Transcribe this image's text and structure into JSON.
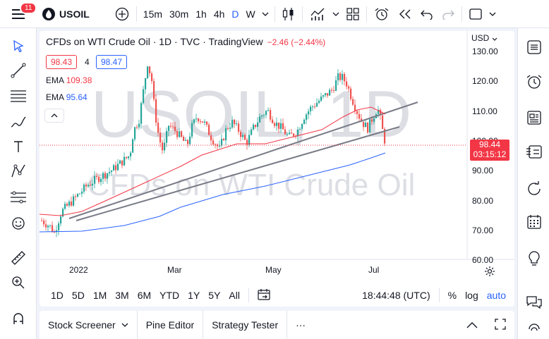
{
  "topbar": {
    "notif_count": "11",
    "symbol": "USOIL",
    "timeframes": [
      "15m",
      "30m",
      "1h",
      "4h",
      "D",
      "W"
    ],
    "active_timeframe": "D"
  },
  "chart": {
    "title": "CFDs on WTI Crude Oil · 1D · TVC · TradingView",
    "change": "−2.46 (−2.44%)",
    "bid": "98.43",
    "spread": "4",
    "ask": "98.47",
    "ema1_label": "EMA",
    "ema1_value": "109.38",
    "ema2_label": "EMA",
    "ema2_value": "95.64",
    "watermark_symbol": "USOIL, 1D",
    "watermark_name": "CFDs on WTI Crude Oil",
    "currency": "USD",
    "price_axis": [
      "130.00",
      "120.00",
      "110.00",
      "100.00",
      "90.00",
      "80.00",
      "70.00",
      "60.00"
    ],
    "time_axis": [
      "2022",
      "Mar",
      "May",
      "Jul"
    ],
    "last_price": "98.44",
    "countdown": "03:15:12",
    "colors": {
      "up": "#26a69a",
      "down": "#ef5350",
      "ema_red": "#f23645",
      "ema_blue": "#2962ff"
    }
  },
  "chart_data": {
    "type": "candlestick",
    "ylim": [
      60,
      132
    ],
    "ohlc_close_approx": [
      {
        "x": "2022-01",
        "value": 75
      },
      {
        "x": "2022-02",
        "value": 92
      },
      {
        "x": "2022-03",
        "value": 123
      },
      {
        "x": "2022-04",
        "value": 101
      },
      {
        "x": "2022-05",
        "value": 110
      },
      {
        "x": "2022-06",
        "value": 121
      },
      {
        "x": "2022-07",
        "value": 98.44
      }
    ],
    "ema_red_values": [
      {
        "x": "2022-07",
        "value": 109.38
      }
    ],
    "ema_blue_values": [
      {
        "x": "2022-07",
        "value": 95.64
      }
    ]
  },
  "ranges": {
    "items": [
      "1D",
      "5D",
      "1M",
      "3M",
      "6M",
      "YTD",
      "1Y",
      "5Y",
      "All"
    ],
    "clock": "18:44:48 (UTC)",
    "percent": "%",
    "log": "log",
    "auto": "auto"
  },
  "panels": {
    "items": [
      "Stock Screener",
      "Pine Editor",
      "Strategy Tester",
      "···"
    ]
  }
}
